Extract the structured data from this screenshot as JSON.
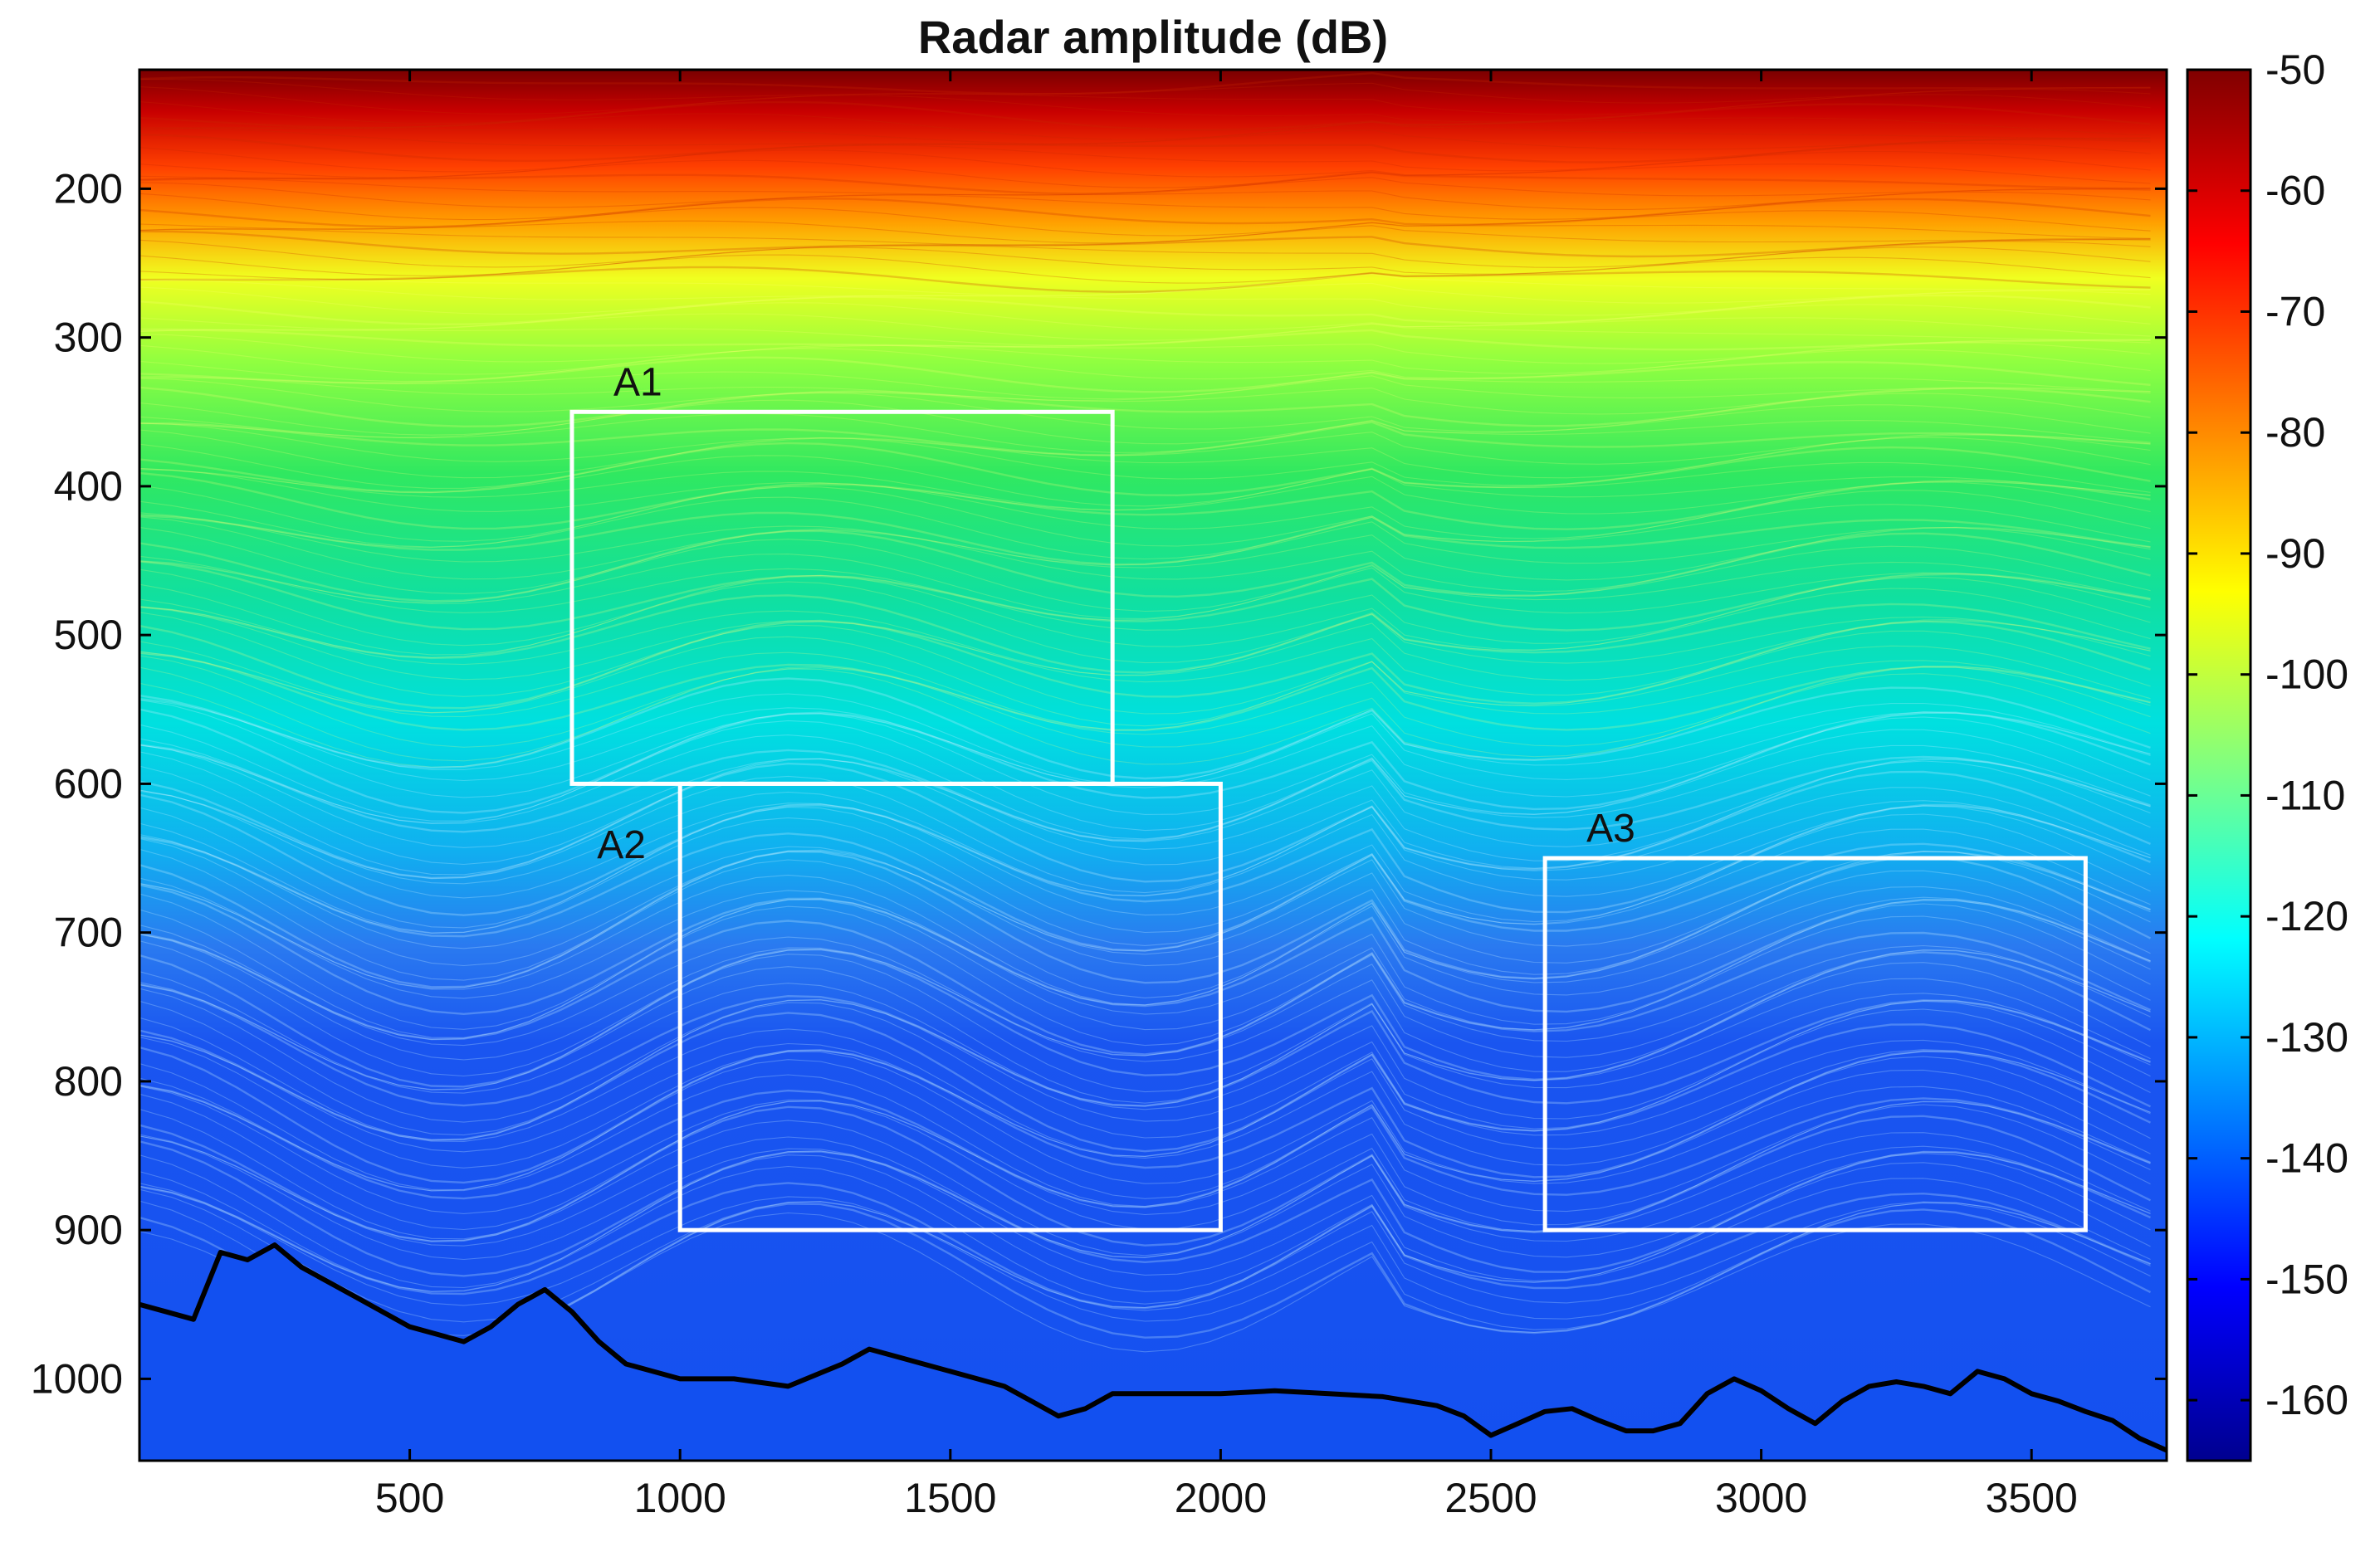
{
  "chart_data": {
    "type": "heatmap",
    "title": "Radar amplitude (dB)",
    "xlabel": "",
    "ylabel": "",
    "xlim": [
      0,
      3750
    ],
    "ylim": [
      1055,
      120
    ],
    "y_axis_reversed": true,
    "x_ticks": [
      500,
      1000,
      1500,
      2000,
      2500,
      3000,
      3500
    ],
    "y_ticks": [
      200,
      300,
      400,
      500,
      600,
      700,
      800,
      900,
      1000
    ],
    "grid": false,
    "colorbar": {
      "label": "",
      "range": [
        -165,
        -50
      ],
      "ticks": [
        -50,
        -60,
        -70,
        -80,
        -90,
        -100,
        -110,
        -120,
        -130,
        -140,
        -150,
        -160
      ],
      "colormap": "jet",
      "colors": [
        "#00008f",
        "#0000ff",
        "#0080ff",
        "#00ffff",
        "#80ff80",
        "#ffff00",
        "#ff8000",
        "#ff0000",
        "#800000"
      ]
    },
    "annotations": [
      {
        "label": "A1",
        "x_range": [
          800,
          1800
        ],
        "y_range": [
          350,
          600
        ]
      },
      {
        "label": "A2",
        "x_range": [
          1000,
          2000
        ],
        "y_range": [
          600,
          900
        ]
      },
      {
        "label": "A3",
        "x_range": [
          2600,
          3600
        ],
        "y_range": [
          650,
          900
        ]
      }
    ],
    "bed_trace": {
      "x": [
        0,
        50,
        100,
        150,
        200,
        250,
        300,
        400,
        500,
        550,
        600,
        650,
        700,
        750,
        800,
        850,
        900,
        950,
        1000,
        1100,
        1200,
        1300,
        1350,
        1400,
        1500,
        1550,
        1600,
        1650,
        1700,
        1750,
        1800,
        1900,
        2000,
        2100,
        2200,
        2300,
        2400,
        2450,
        2500,
        2550,
        2600,
        2650,
        2700,
        2750,
        2800,
        2850,
        2900,
        2950,
        3000,
        3050,
        3100,
        3150,
        3200,
        3250,
        3300,
        3350,
        3400,
        3450,
        3500,
        3550,
        3600,
        3650,
        3700,
        3750
      ],
      "y": [
        950,
        955,
        960,
        915,
        920,
        910,
        925,
        945,
        965,
        970,
        975,
        965,
        950,
        940,
        955,
        975,
        990,
        995,
        1000,
        1000,
        1005,
        990,
        980,
        985,
        995,
        1000,
        1005,
        1015,
        1025,
        1020,
        1010,
        1010,
        1010,
        1008,
        1010,
        1012,
        1018,
        1025,
        1038,
        1030,
        1022,
        1020,
        1028,
        1035,
        1035,
        1030,
        1010,
        1000,
        1008,
        1020,
        1030,
        1015,
        1005,
        1002,
        1005,
        1010,
        995,
        1000,
        1010,
        1015,
        1022,
        1028,
        1040,
        1048
      ]
    }
  }
}
